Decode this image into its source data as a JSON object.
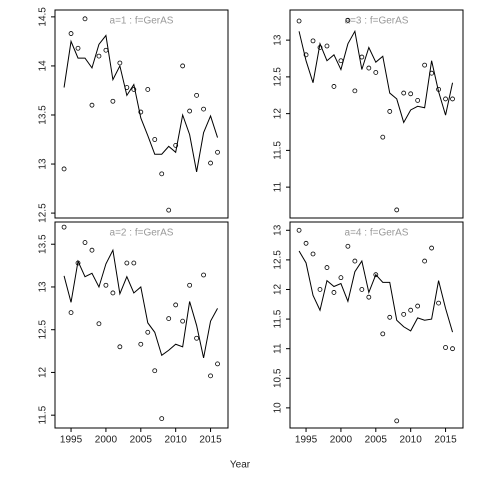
{
  "xlabel": "Year",
  "chart_data": [
    {
      "type": "line",
      "title": "a=1  :  f=GerAS",
      "x": [
        1994,
        1995,
        1996,
        1997,
        1998,
        1999,
        2000,
        2001,
        2002,
        2003,
        2004,
        2005,
        2006,
        2007,
        2008,
        2009,
        2010,
        2011,
        2012,
        2013,
        2014,
        2015,
        2016
      ],
      "xlim": [
        1992.7,
        2017.5
      ],
      "ylim": [
        12.45,
        14.57
      ],
      "yticks": [
        12.5,
        13.0,
        13.5,
        14.0,
        14.5
      ],
      "series": [
        {
          "style": "points",
          "color": "#000000",
          "values": [
            12.95,
            14.33,
            14.18,
            14.48,
            13.6,
            14.1,
            14.16,
            13.64,
            14.03,
            13.78,
            13.76,
            13.53,
            13.76,
            13.25,
            12.9,
            12.53,
            13.19,
            14.0,
            13.54,
            13.7,
            13.56,
            13.01,
            13.12
          ]
        },
        {
          "style": "line",
          "color": "#000000",
          "values": [
            13.78,
            14.25,
            14.08,
            14.08,
            13.98,
            14.22,
            14.31,
            13.86,
            14.0,
            13.7,
            13.81,
            13.47,
            13.29,
            13.1,
            13.1,
            13.18,
            13.12,
            13.5,
            13.3,
            12.92,
            13.32,
            13.49,
            13.27
          ]
        }
      ]
    },
    {
      "type": "line",
      "title": "a=3  :  f=GerAS",
      "x": [
        1994,
        1995,
        1996,
        1997,
        1998,
        1999,
        2000,
        2001,
        2002,
        2003,
        2004,
        2005,
        2006,
        2007,
        2008,
        2009,
        2010,
        2011,
        2012,
        2013,
        2014,
        2015,
        2016
      ],
      "xlim": [
        1992.7,
        2017.5
      ],
      "ylim": [
        10.58,
        13.41
      ],
      "yticks": [
        11.0,
        11.5,
        12.0,
        12.5,
        13.0
      ],
      "series": [
        {
          "style": "points",
          "color": "#000000",
          "values": [
            13.26,
            12.8,
            12.99,
            12.9,
            12.92,
            12.37,
            12.72,
            13.27,
            12.31,
            12.77,
            12.62,
            12.56,
            11.68,
            12.03,
            10.69,
            12.28,
            12.27,
            12.18,
            12.66,
            12.55,
            12.33,
            12.2,
            12.2
          ]
        },
        {
          "style": "line",
          "color": "#000000",
          "values": [
            13.12,
            12.72,
            12.42,
            12.95,
            12.72,
            12.8,
            12.6,
            12.95,
            13.12,
            12.6,
            12.9,
            12.7,
            12.78,
            12.28,
            12.2,
            11.88,
            12.05,
            12.1,
            12.08,
            12.72,
            12.3,
            11.98,
            12.42
          ]
        }
      ]
    },
    {
      "type": "line",
      "title": "a=2  :  f=GerAS",
      "x": [
        1994,
        1995,
        1996,
        1997,
        1998,
        1999,
        2000,
        2001,
        2002,
        2003,
        2004,
        2005,
        2006,
        2007,
        2008,
        2009,
        2010,
        2011,
        2012,
        2013,
        2014,
        2015,
        2016
      ],
      "xlim": [
        1992.7,
        2017.5
      ],
      "ylim": [
        11.35,
        13.76
      ],
      "yticks": [
        11.5,
        12.0,
        12.5,
        13.0,
        13.5
      ],
      "xticks": [
        1995,
        2000,
        2005,
        2010,
        2015
      ],
      "series": [
        {
          "style": "points",
          "color": "#000000",
          "values": [
            13.7,
            12.7,
            13.28,
            13.52,
            13.43,
            12.57,
            13.02,
            12.93,
            12.3,
            13.28,
            13.28,
            12.33,
            12.47,
            12.02,
            11.46,
            12.63,
            12.79,
            12.6,
            13.02,
            12.4,
            13.14,
            11.96,
            12.1
          ]
        },
        {
          "style": "line",
          "color": "#000000",
          "values": [
            13.13,
            12.82,
            13.3,
            13.12,
            13.16,
            13.0,
            13.27,
            13.43,
            12.92,
            13.12,
            12.93,
            13.0,
            12.58,
            12.47,
            12.2,
            12.26,
            12.33,
            12.3,
            12.83,
            12.55,
            12.17,
            12.6,
            12.75
          ]
        }
      ]
    },
    {
      "type": "line",
      "title": "a=4  :  f=GerAS",
      "x": [
        1994,
        1995,
        1996,
        1997,
        1998,
        1999,
        2000,
        2001,
        2002,
        2003,
        2004,
        2005,
        2006,
        2007,
        2008,
        2009,
        2010,
        2011,
        2012,
        2013,
        2014,
        2015,
        2016
      ],
      "xlim": [
        1992.7,
        2017.5
      ],
      "ylim": [
        9.66,
        13.14
      ],
      "yticks": [
        10.0,
        10.5,
        11.0,
        11.5,
        12.0,
        12.5,
        13.0
      ],
      "xticks": [
        1995,
        2000,
        2005,
        2010,
        2015
      ],
      "series": [
        {
          "style": "points",
          "color": "#000000",
          "values": [
            13.0,
            12.78,
            12.6,
            12.0,
            12.37,
            11.95,
            12.2,
            12.73,
            12.48,
            12.0,
            11.87,
            12.25,
            11.25,
            11.53,
            9.78,
            11.58,
            11.65,
            11.72,
            12.48,
            12.7,
            11.77,
            11.02,
            11.0
          ]
        },
        {
          "style": "line",
          "color": "#000000",
          "values": [
            12.65,
            12.45,
            11.9,
            11.65,
            12.15,
            12.05,
            12.1,
            11.8,
            12.3,
            12.48,
            11.95,
            12.25,
            12.12,
            12.12,
            11.48,
            11.37,
            11.3,
            11.52,
            11.48,
            11.5,
            12.15,
            11.68,
            11.28
          ]
        }
      ]
    }
  ]
}
